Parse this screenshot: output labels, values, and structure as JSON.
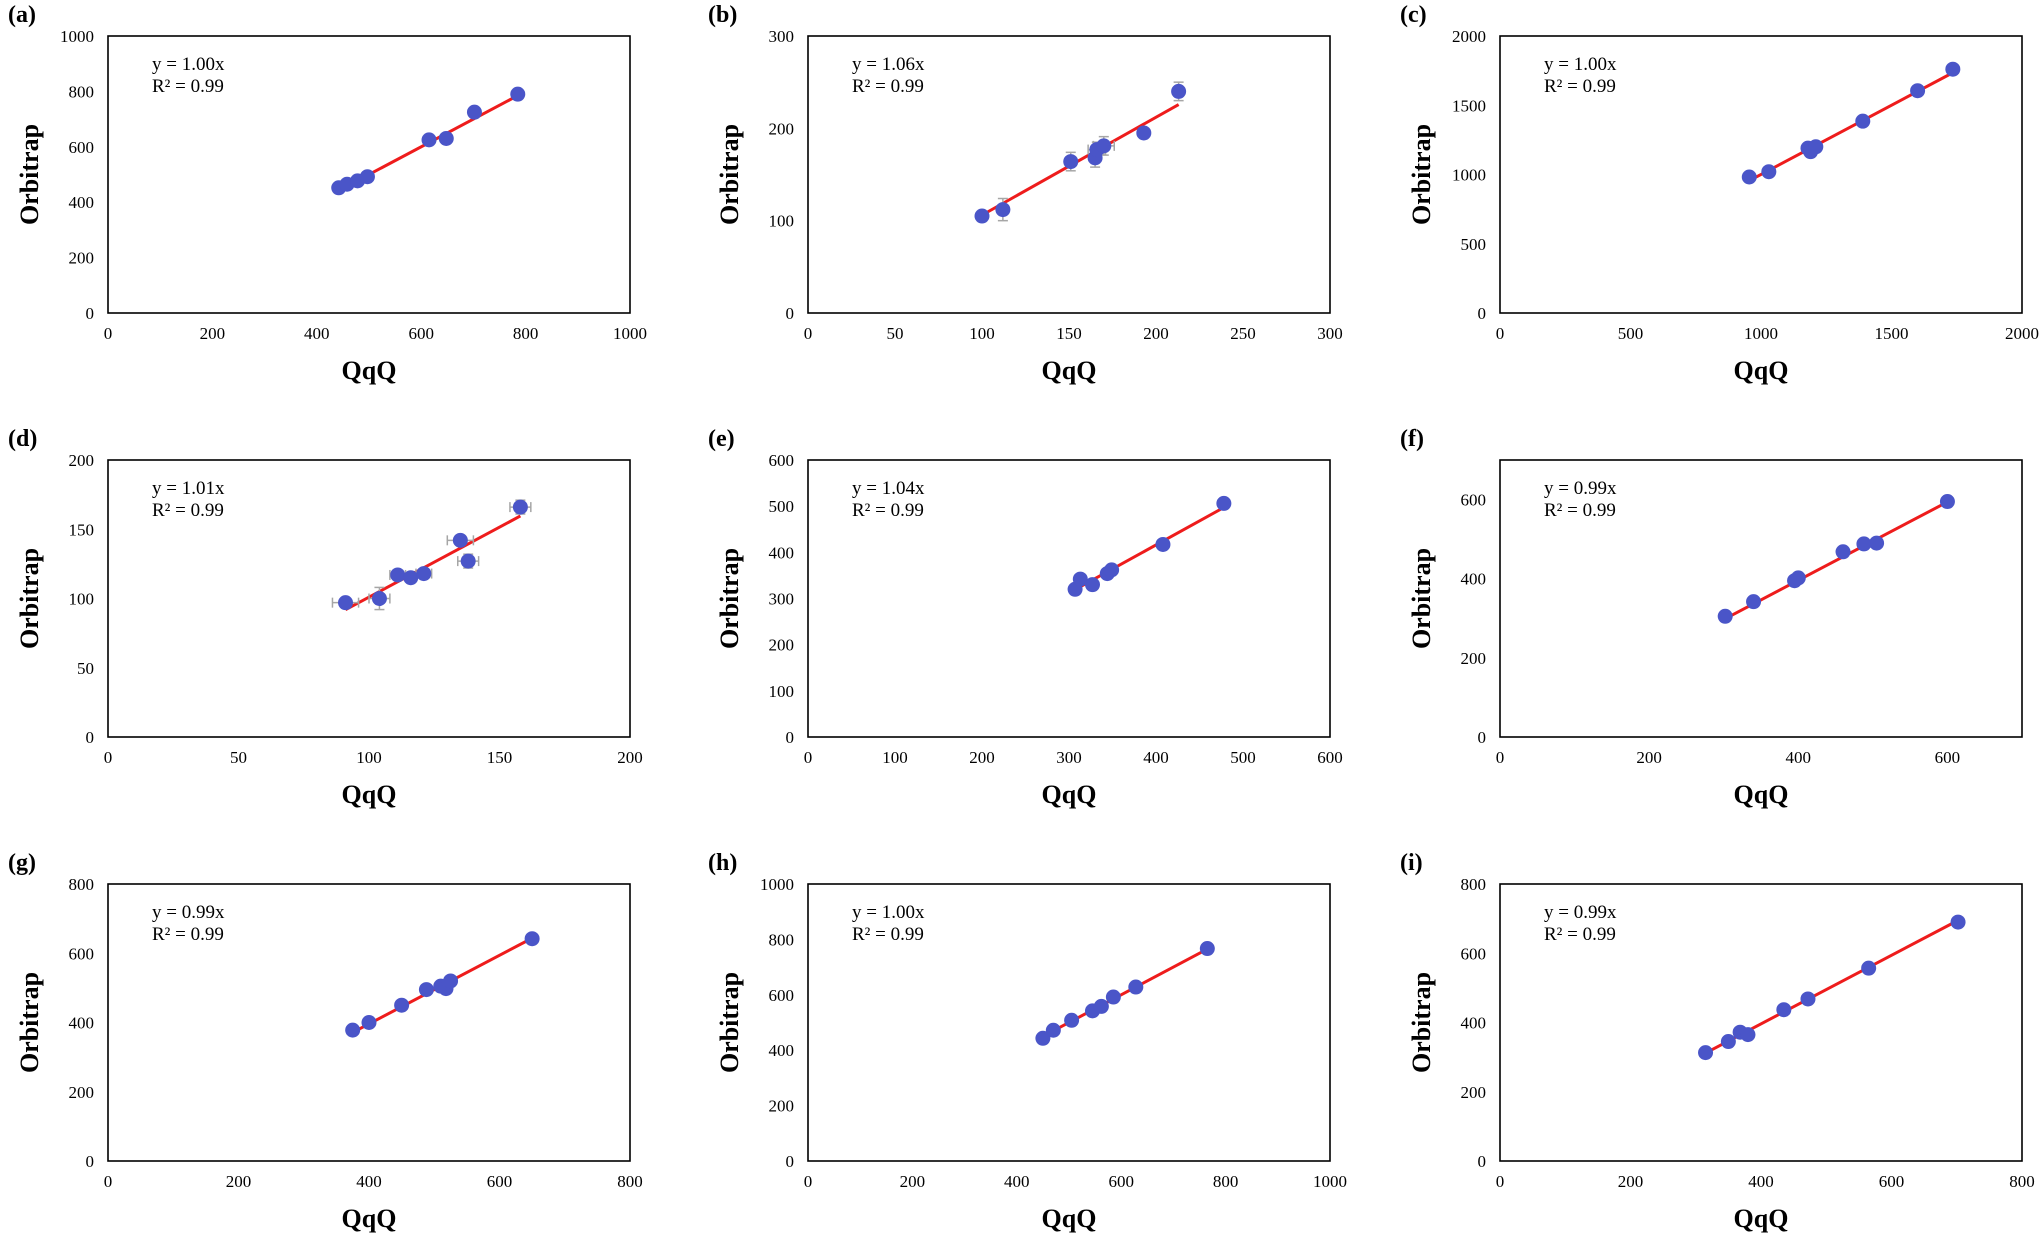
{
  "figure": {
    "series_color": "#4a55c8",
    "trendline_color": "#ee1c1c",
    "errorbar_color": "#a6a6a6"
  },
  "chart_data": [
    {
      "panel": "(a)",
      "type": "scatter",
      "xlabel": "QqQ",
      "ylabel": "Orbitrap",
      "xlim": [
        0,
        1000
      ],
      "ylim": [
        0,
        1000
      ],
      "xticks": [
        0,
        200,
        400,
        600,
        800,
        1000
      ],
      "yticks": [
        0,
        200,
        400,
        600,
        800,
        1000
      ],
      "equation": "y = 1.00x",
      "r2": "R² = 0.99",
      "slope": 1.0,
      "fit_x": [
        445,
        785
      ],
      "points": [
        {
          "x": 442,
          "y": 452
        },
        {
          "x": 458,
          "y": 465
        },
        {
          "x": 478,
          "y": 477
        },
        {
          "x": 497,
          "y": 492
        },
        {
          "x": 615,
          "y": 625
        },
        {
          "x": 648,
          "y": 630
        },
        {
          "x": 702,
          "y": 725
        },
        {
          "x": 785,
          "y": 790
        }
      ]
    },
    {
      "panel": "(b)",
      "type": "scatter",
      "xlabel": "QqQ",
      "ylabel": "Orbitrap",
      "xlim": [
        0,
        300
      ],
      "ylim": [
        0,
        300
      ],
      "xticks": [
        0,
        50,
        100,
        150,
        200,
        250,
        300
      ],
      "yticks": [
        0,
        100,
        200,
        300
      ],
      "equation": "y = 1.06x",
      "r2": "R² = 0.99",
      "slope": 1.06,
      "fit_x": [
        100,
        213
      ],
      "points": [
        {
          "x": 100,
          "y": 105,
          "yerr": 3
        },
        {
          "x": 112,
          "y": 112,
          "yerr": 12
        },
        {
          "x": 151,
          "y": 164,
          "yerr": 10
        },
        {
          "x": 165,
          "y": 168,
          "yerr": 10
        },
        {
          "x": 166,
          "y": 177,
          "xerr": 5,
          "yerr": 8
        },
        {
          "x": 170,
          "y": 181,
          "xerr": 6,
          "yerr": 10
        },
        {
          "x": 193,
          "y": 195,
          "yerr": 5
        },
        {
          "x": 213,
          "y": 240,
          "yerr": 10
        }
      ]
    },
    {
      "panel": "(c)",
      "type": "scatter",
      "xlabel": "QqQ",
      "ylabel": "Orbitrap",
      "xlim": [
        0,
        2000
      ],
      "ylim": [
        0,
        2000
      ],
      "xticks": [
        0,
        500,
        1000,
        1500,
        2000
      ],
      "yticks": [
        0,
        500,
        1000,
        1500,
        2000
      ],
      "equation": "y = 1.00x",
      "r2": "R² = 0.99",
      "slope": 1.0,
      "fit_x": [
        955,
        1740
      ],
      "points": [
        {
          "x": 955,
          "y": 982
        },
        {
          "x": 1030,
          "y": 1020
        },
        {
          "x": 1180,
          "y": 1190
        },
        {
          "x": 1190,
          "y": 1165
        },
        {
          "x": 1210,
          "y": 1200
        },
        {
          "x": 1390,
          "y": 1385
        },
        {
          "x": 1600,
          "y": 1605
        },
        {
          "x": 1735,
          "y": 1760
        }
      ]
    },
    {
      "panel": "(d)",
      "type": "scatter",
      "xlabel": "QqQ",
      "ylabel": "Orbitrap",
      "xlim": [
        0,
        200
      ],
      "ylim": [
        0,
        200
      ],
      "xticks": [
        0,
        50,
        100,
        150,
        200
      ],
      "yticks": [
        0,
        50,
        100,
        150,
        200
      ],
      "equation": "y = 1.01x",
      "r2": "R² = 0.99",
      "slope": 1.01,
      "fit_x": [
        91,
        158
      ],
      "points": [
        {
          "x": 91,
          "y": 97,
          "xerr": 5
        },
        {
          "x": 104,
          "y": 100,
          "xerr": 4,
          "yerr": 8
        },
        {
          "x": 111,
          "y": 117,
          "xerr": 3
        },
        {
          "x": 116,
          "y": 115,
          "yerr": 3
        },
        {
          "x": 121,
          "y": 118,
          "xerr": 3
        },
        {
          "x": 135,
          "y": 142,
          "xerr": 5
        },
        {
          "x": 138,
          "y": 127,
          "xerr": 4,
          "yerr": 5
        },
        {
          "x": 158,
          "y": 166,
          "xerr": 4,
          "yerr": 5
        }
      ]
    },
    {
      "panel": "(e)",
      "type": "scatter",
      "xlabel": "QqQ",
      "ylabel": "Orbitrap",
      "xlim": [
        0,
        600
      ],
      "ylim": [
        0,
        600
      ],
      "xticks": [
        0,
        100,
        200,
        300,
        400,
        500,
        600
      ],
      "yticks": [
        0,
        100,
        200,
        300,
        400,
        500,
        600
      ],
      "equation": "y = 1.04x",
      "r2": "R² = 0.99",
      "slope": 1.04,
      "fit_x": [
        307,
        478
      ],
      "points": [
        {
          "x": 307,
          "y": 320
        },
        {
          "x": 313,
          "y": 342
        },
        {
          "x": 327,
          "y": 330
        },
        {
          "x": 344,
          "y": 354
        },
        {
          "x": 349,
          "y": 362
        },
        {
          "x": 408,
          "y": 417
        },
        {
          "x": 478,
          "y": 506
        }
      ]
    },
    {
      "panel": "(f)",
      "type": "scatter",
      "xlabel": "QqQ",
      "ylabel": "Orbitrap",
      "xlim": [
        0,
        700
      ],
      "ylim": [
        0,
        700
      ],
      "xticks": [
        0,
        200,
        400,
        600
      ],
      "yticks": [
        0,
        200,
        400,
        600
      ],
      "equation": "y = 0.99x",
      "r2": "R² = 0.99",
      "slope": 0.99,
      "fit_x": [
        302,
        600
      ],
      "points": [
        {
          "x": 302,
          "y": 305
        },
        {
          "x": 340,
          "y": 342
        },
        {
          "x": 395,
          "y": 395
        },
        {
          "x": 400,
          "y": 402
        },
        {
          "x": 460,
          "y": 468
        },
        {
          "x": 488,
          "y": 488
        },
        {
          "x": 505,
          "y": 490
        },
        {
          "x": 600,
          "y": 595
        }
      ]
    },
    {
      "panel": "(g)",
      "type": "scatter",
      "xlabel": "QqQ",
      "ylabel": "Orbitrap",
      "xlim": [
        0,
        800
      ],
      "ylim": [
        0,
        800
      ],
      "xticks": [
        0,
        200,
        400,
        600,
        800
      ],
      "yticks": [
        0,
        200,
        400,
        600,
        800
      ],
      "equation": "y = 0.99x",
      "r2": "R² = 0.99",
      "slope": 0.99,
      "fit_x": [
        375,
        652
      ],
      "points": [
        {
          "x": 375,
          "y": 378
        },
        {
          "x": 400,
          "y": 400
        },
        {
          "x": 450,
          "y": 450
        },
        {
          "x": 488,
          "y": 495
        },
        {
          "x": 510,
          "y": 505
        },
        {
          "x": 518,
          "y": 498
        },
        {
          "x": 525,
          "y": 520
        },
        {
          "x": 650,
          "y": 642
        }
      ]
    },
    {
      "panel": "(h)",
      "type": "scatter",
      "xlabel": "QqQ",
      "ylabel": "Orbitrap",
      "xlim": [
        0,
        1000
      ],
      "ylim": [
        0,
        1000
      ],
      "xticks": [
        0,
        200,
        400,
        600,
        800,
        1000
      ],
      "yticks": [
        0,
        200,
        400,
        600,
        800,
        1000
      ],
      "equation": "y = 1.00x",
      "r2": "R² = 0.99",
      "slope": 1.0,
      "fit_x": [
        450,
        765
      ],
      "points": [
        {
          "x": 450,
          "y": 443
        },
        {
          "x": 470,
          "y": 472
        },
        {
          "x": 505,
          "y": 508
        },
        {
          "x": 545,
          "y": 542
        },
        {
          "x": 562,
          "y": 558
        },
        {
          "x": 585,
          "y": 592
        },
        {
          "x": 628,
          "y": 628
        },
        {
          "x": 765,
          "y": 767
        }
      ]
    },
    {
      "panel": "(i)",
      "type": "scatter",
      "xlabel": "QqQ",
      "ylabel": "Orbitrap",
      "xlim": [
        0,
        800
      ],
      "ylim": [
        0,
        800
      ],
      "xticks": [
        0,
        200,
        400,
        600,
        800
      ],
      "yticks": [
        0,
        200,
        400,
        600,
        800
      ],
      "equation": "y = 0.99x",
      "r2": "R² = 0.99",
      "slope": 0.99,
      "fit_x": [
        315,
        702
      ],
      "points": [
        {
          "x": 315,
          "y": 313
        },
        {
          "x": 350,
          "y": 345
        },
        {
          "x": 368,
          "y": 372
        },
        {
          "x": 380,
          "y": 365
        },
        {
          "x": 435,
          "y": 437
        },
        {
          "x": 472,
          "y": 468
        },
        {
          "x": 565,
          "y": 557
        },
        {
          "x": 702,
          "y": 690
        }
      ]
    }
  ]
}
